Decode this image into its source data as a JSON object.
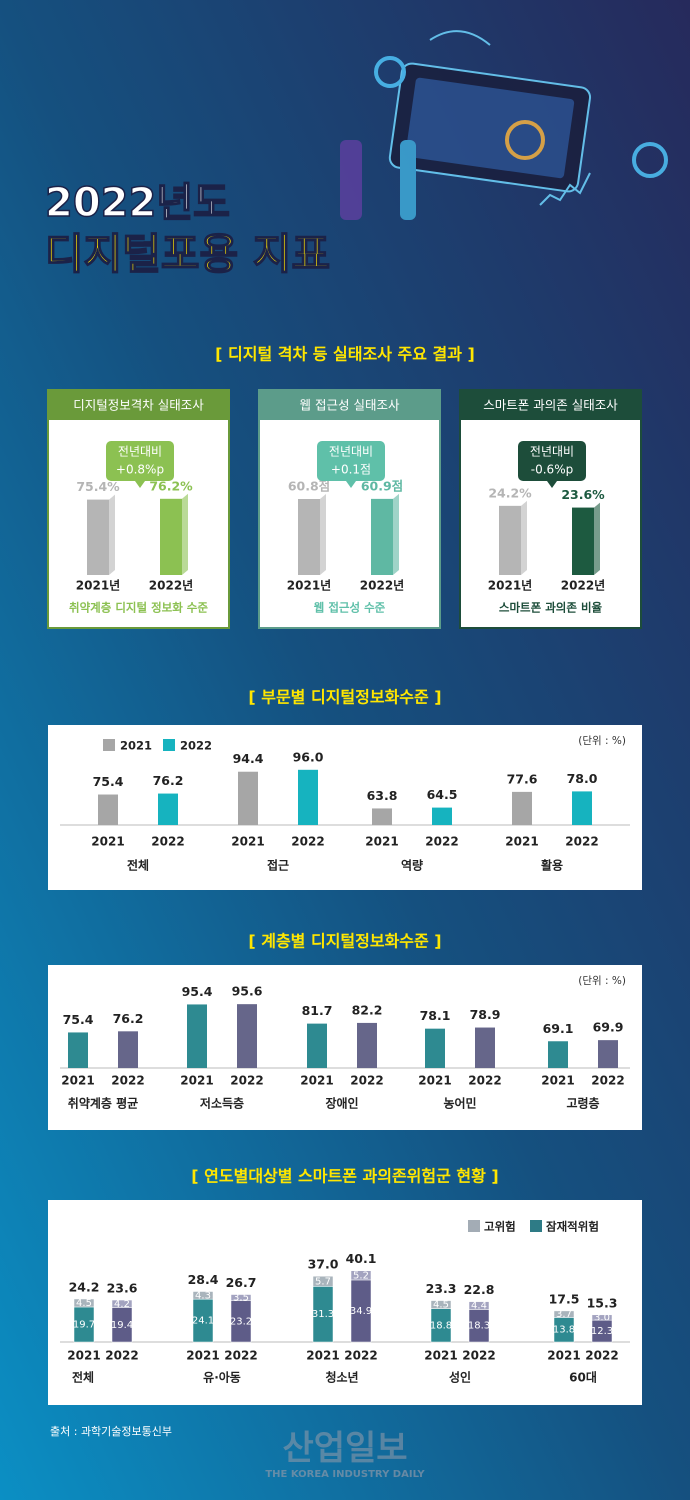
{
  "header": {
    "title_line1": "2022년도",
    "title_line2": "디지털포용 지표"
  },
  "survey": {
    "title": "[ 디지털 격차 등 실태조사 주요 결과 ]",
    "cards": [
      {
        "name": "디지털정보격차 실태조사",
        "theme": "#6a9a3a",
        "bubble": "#8cc152",
        "change_lines": [
          "전년대비",
          "+0.8%p"
        ],
        "chart": {
          "type": "bar",
          "categories": [
            "2021년",
            "2022년"
          ],
          "values": [
            75.4,
            76.2
          ],
          "value_labels": [
            "75.4%",
            "76.2%"
          ],
          "colors": [
            "#b5b5b5",
            "#8cc152"
          ],
          "ylim": [
            0,
            100
          ]
        },
        "caption": "취약계층 디지털 정보화 수준"
      },
      {
        "name": "웹 접근성 실태조사",
        "theme": "#5c9c8a",
        "bubble": "#5fc0a9",
        "change_lines": [
          "전년대비",
          "+0.1점"
        ],
        "chart": {
          "type": "bar",
          "categories": [
            "2021년",
            "2022년"
          ],
          "values": [
            60.8,
            60.9
          ],
          "value_labels": [
            "60.8점",
            "60.9점"
          ],
          "colors": [
            "#b5b5b5",
            "#5fb8a3"
          ],
          "ylim": [
            0,
            80
          ]
        },
        "caption": "웹 접근성 수준"
      },
      {
        "name": "스마트폰 과의존 실태조사",
        "theme": "#1d4d3a",
        "bubble": "#1d4d3a",
        "change_lines": [
          "전년대비",
          "-0.6%p"
        ],
        "chart": {
          "type": "bar",
          "categories": [
            "2021년",
            "2022년"
          ],
          "values": [
            24.2,
            23.6
          ],
          "value_labels": [
            "24.2%",
            "23.6%"
          ],
          "colors": [
            "#b5b5b5",
            "#1d5a40"
          ],
          "ylim": [
            0,
            35
          ]
        },
        "caption": "스마트폰 과의존 비율"
      }
    ]
  },
  "sector": {
    "title": "[ 부문별 디지털정보화수준 ]",
    "chart": {
      "type": "bar",
      "unit": "(단위 : %)",
      "legend": true,
      "ylim": [
        50,
        100
      ],
      "categories": [
        "전체",
        "접근",
        "역량",
        "활용"
      ],
      "series": [
        {
          "name": "2021",
          "color": "#a6a6a6",
          "values": [
            75.4,
            94.4,
            63.8,
            77.6
          ]
        },
        {
          "name": "2022",
          "color": "#16b3bf",
          "values": [
            76.2,
            96.0,
            64.5,
            78.0
          ],
          "value_labels": [
            "76.2",
            "96.0",
            "64.5",
            "78.0"
          ]
        }
      ]
    }
  },
  "class": {
    "title": "[ 계층별 디지털정보화수준 ]",
    "chart": {
      "type": "bar",
      "unit": "(단위 : %)",
      "legend": false,
      "ylim": [
        50,
        100
      ],
      "categories": [
        "취약계층 평균",
        "저소득층",
        "장애인",
        "농어민",
        "고령층"
      ],
      "series": [
        {
          "name": "2021",
          "color": "#2e8a91",
          "values": [
            75.4,
            95.4,
            81.7,
            78.1,
            69.1
          ]
        },
        {
          "name": "2022",
          "color": "#66668a",
          "values": [
            76.2,
            95.6,
            82.2,
            78.9,
            69.9
          ]
        }
      ]
    }
  },
  "risk": {
    "title": "[ 연도별대상별 스마트폰 과의존위험군 현황 ]",
    "chart": {
      "type": "stacked_bar",
      "legend": true,
      "ylim": [
        0,
        45
      ],
      "groups": [
        "전체",
        "유·아동",
        "청소년",
        "성인",
        "60대"
      ],
      "categories": [
        "2021",
        "2022",
        "2021",
        "2022",
        "2021",
        "2022",
        "2021",
        "2022",
        "2021",
        "2022"
      ],
      "series": [
        {
          "name": "고위험",
          "color": "#a3acb5",
          "colors": [
            "#a9b4bc",
            "#a3a3c0",
            "#a9b4bc",
            "#a3a3c0",
            "#a9b4bc",
            "#a3a3c0",
            "#a9b4bc",
            "#a3a3c0",
            "#a9b4bc",
            "#a3a3c0"
          ],
          "values": [
            4.5,
            4.2,
            4.3,
            3.5,
            5.7,
            5.2,
            4.5,
            4.4,
            3.7,
            3.0
          ],
          "value_labels": [
            "4.5",
            "4.2",
            "4.3",
            "3.5",
            "5.7",
            "5.2",
            "4.5",
            "4.4",
            "3.7",
            "3.0"
          ]
        },
        {
          "name": "잠재적위험",
          "color": "#2e7b86",
          "colors": [
            "#2e8a91",
            "#5e5c88",
            "#2e8a91",
            "#5e5c88",
            "#2e8a91",
            "#5e5c88",
            "#2e8a91",
            "#5e5c88",
            "#2e8a91",
            "#5e5c88"
          ],
          "values": [
            19.7,
            19.4,
            24.1,
            23.2,
            31.3,
            34.9,
            18.8,
            18.3,
            13.8,
            12.3
          ]
        }
      ],
      "totals": [
        24.2,
        23.6,
        28.4,
        26.7,
        37.0,
        40.1,
        23.3,
        22.8,
        17.5,
        15.3
      ],
      "total_labels": [
        "24.2",
        "23.6",
        "28.4",
        "26.7",
        "37.0",
        "40.1",
        "23.3",
        "22.8",
        "17.5",
        "15.3"
      ]
    }
  },
  "footer": {
    "source": "출처 : 과학기술정보통신부",
    "brand": "산업일보",
    "brand_sub": "THE KOREA INDUSTRY DAILY"
  }
}
